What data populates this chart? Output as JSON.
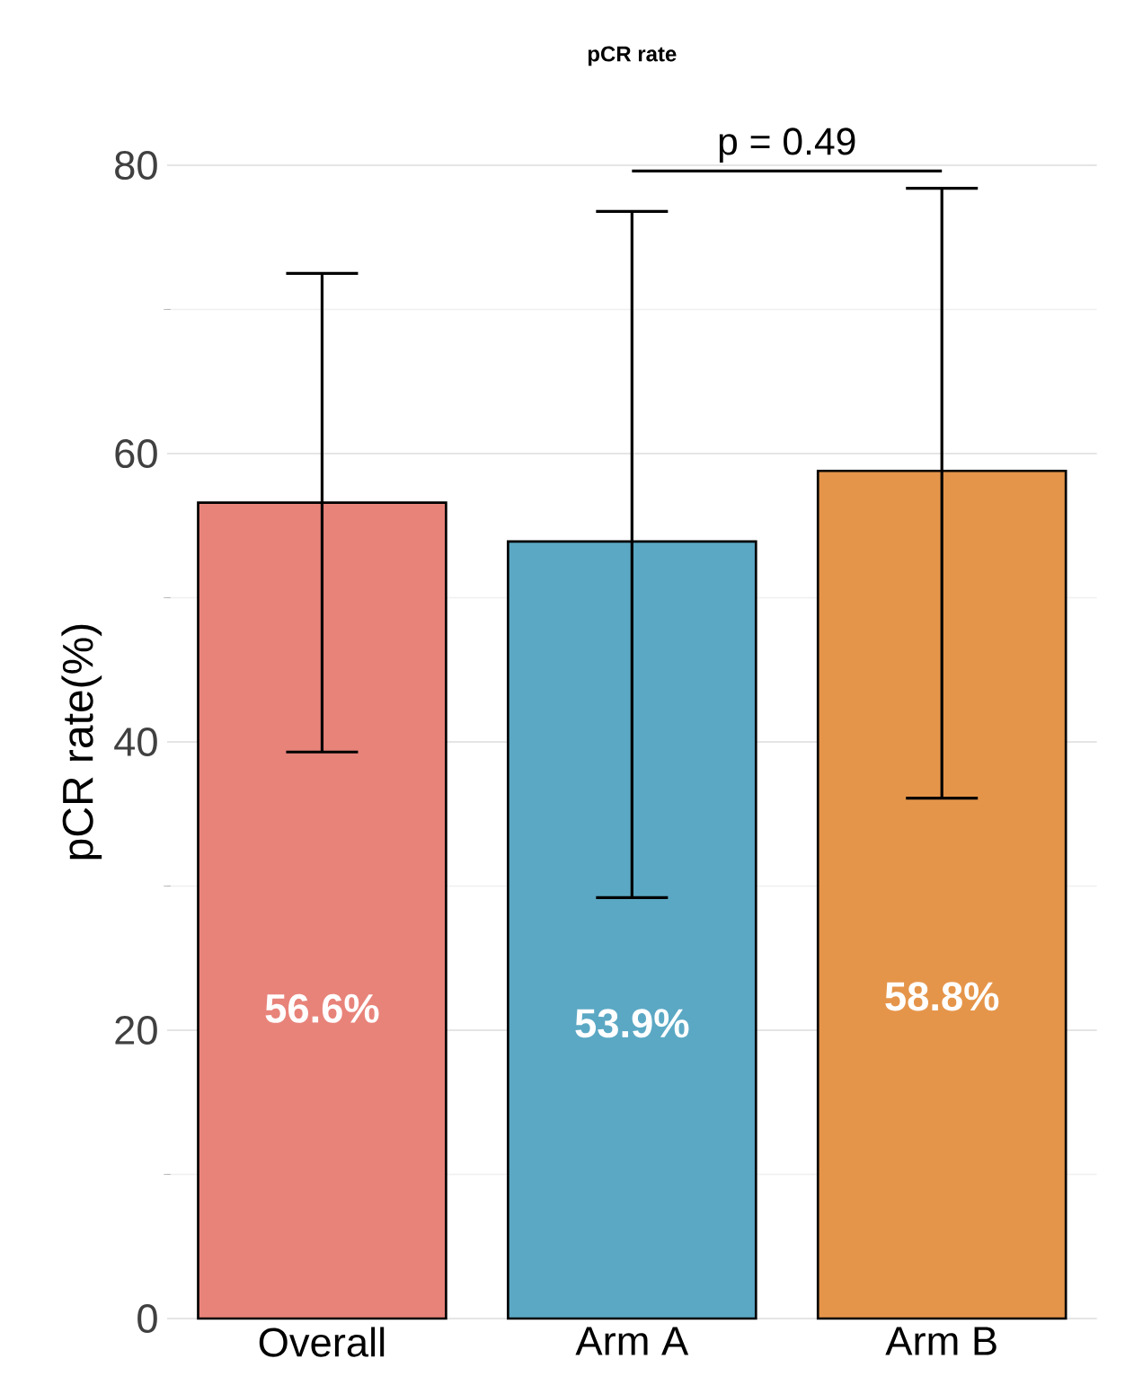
{
  "chart_data": {
    "type": "bar",
    "title": "pCR rate",
    "ylabel": "pCR rate(%)",
    "categories": [
      "Overall",
      "Arm A",
      "Arm B"
    ],
    "values": [
      56.6,
      53.9,
      58.8
    ],
    "colors": [
      "#e8837a",
      "#5ba8c4",
      "#e5954a"
    ],
    "errors": [
      [
        39.3,
        72.5
      ],
      [
        29.2,
        76.8
      ],
      [
        36.1,
        78.4
      ]
    ],
    "value_labels": [
      "56.6%",
      "53.9%",
      "58.8%"
    ],
    "annotations": [
      "p = 0.49"
    ],
    "ylim": [
      0,
      80
    ],
    "yticks": [
      0,
      20,
      40,
      60,
      80
    ],
    "grid": "y"
  }
}
